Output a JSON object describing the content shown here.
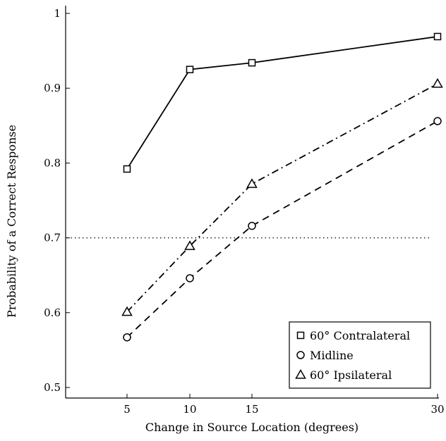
{
  "chart_data": {
    "type": "line",
    "xlabel": "Change in Source Location (degrees)",
    "ylabel": "Probability of a Correct Response",
    "x": [
      5,
      10,
      15,
      30
    ],
    "xlim": [
      0,
      30
    ],
    "ylim": [
      0.5,
      1.0
    ],
    "xticks": [
      5,
      10,
      15,
      30
    ],
    "xtick_labels": [
      "5",
      "10",
      "15",
      "30"
    ],
    "yticks": [
      0.5,
      0.6,
      0.7,
      0.8,
      0.9,
      1.0
    ],
    "ytick_labels": [
      "0.5",
      "0.6",
      "0.7",
      "0.8",
      "0.9",
      "1"
    ],
    "x_axis_scale": "nonlinear (5, 10, 15 evenly spaced; 30 at far right)",
    "grid": false,
    "legend_position": "bottom-right",
    "reference_line": {
      "y": 0.7,
      "style": "dotted"
    },
    "series": [
      {
        "name": "60° Contralateral",
        "marker": "square",
        "line_style": "solid",
        "values": [
          0.792,
          0.925,
          0.934,
          0.969
        ]
      },
      {
        "name": "Midline",
        "marker": "circle",
        "line_style": "dashed",
        "values": [
          0.567,
          0.646,
          0.716,
          0.856
        ]
      },
      {
        "name": "60° Ipsilateral",
        "marker": "triangle",
        "line_style": "dash-dot",
        "values": [
          0.601,
          0.689,
          0.772,
          0.906
        ]
      }
    ]
  }
}
